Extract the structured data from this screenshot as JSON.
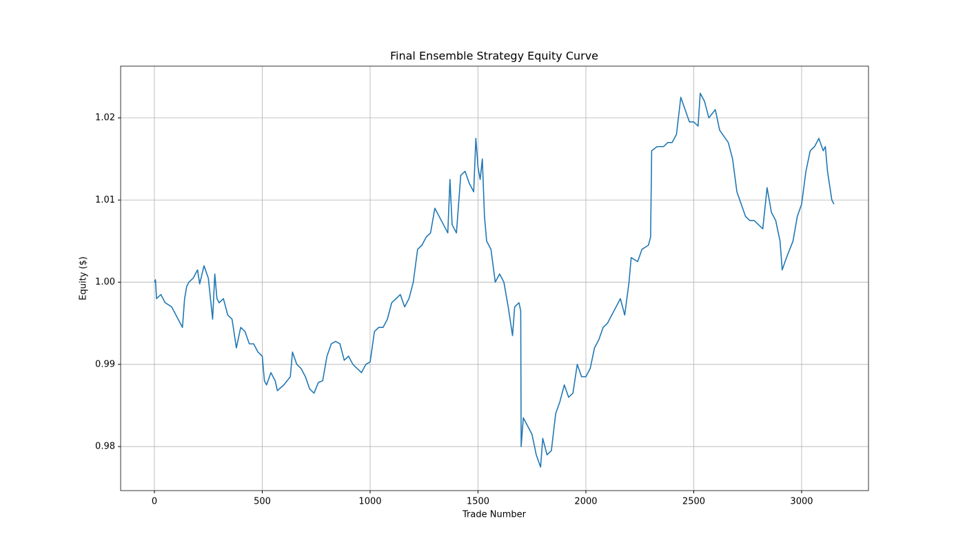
{
  "chart_data": {
    "type": "line",
    "title": "Final Ensemble Strategy Equity Curve",
    "xlabel": "Trade Number",
    "ylabel": "Equity ($)",
    "x": [
      0,
      5,
      10,
      30,
      50,
      80,
      100,
      120,
      130,
      140,
      150,
      160,
      180,
      200,
      210,
      230,
      250,
      260,
      270,
      280,
      290,
      300,
      320,
      340,
      360,
      380,
      400,
      420,
      440,
      460,
      480,
      500,
      510,
      520,
      540,
      560,
      570,
      600,
      630,
      640,
      660,
      680,
      700,
      720,
      740,
      760,
      780,
      800,
      820,
      840,
      860,
      880,
      900,
      920,
      940,
      960,
      980,
      1000,
      1020,
      1040,
      1060,
      1080,
      1100,
      1120,
      1140,
      1160,
      1180,
      1200,
      1220,
      1240,
      1260,
      1280,
      1300,
      1320,
      1340,
      1360,
      1370,
      1380,
      1400,
      1420,
      1440,
      1460,
      1480,
      1490,
      1500,
      1510,
      1520,
      1530,
      1540,
      1560,
      1580,
      1600,
      1620,
      1640,
      1660,
      1670,
      1690,
      1698,
      1700,
      1710,
      1730,
      1750,
      1770,
      1790,
      1800,
      1820,
      1840,
      1860,
      1880,
      1900,
      1920,
      1940,
      1960,
      1980,
      2000,
      2020,
      2040,
      2060,
      2080,
      2100,
      2120,
      2140,
      2160,
      2180,
      2200,
      2210,
      2240,
      2260,
      2290,
      2300,
      2305,
      2330,
      2360,
      2380,
      2400,
      2420,
      2440,
      2460,
      2480,
      2500,
      2520,
      2530,
      2550,
      2570,
      2600,
      2620,
      2660,
      2680,
      2700,
      2720,
      2740,
      2760,
      2780,
      2800,
      2820,
      2840,
      2860,
      2880,
      2900,
      2910,
      2930,
      2960,
      2980,
      3000,
      3020,
      3040,
      3060,
      3080,
      3100,
      3110,
      3120,
      3140,
      3150
    ],
    "series": [
      {
        "name": "Equity",
        "color": "#1f77b4",
        "values": [
          1.0,
          1.0003,
          0.998,
          0.9985,
          0.9975,
          0.997,
          0.996,
          0.995,
          0.9945,
          0.998,
          0.9995,
          1.0,
          1.0005,
          1.0015,
          0.9998,
          1.002,
          1.0005,
          0.998,
          0.9955,
          1.001,
          0.998,
          0.9975,
          0.998,
          0.996,
          0.9955,
          0.992,
          0.9945,
          0.994,
          0.9925,
          0.9925,
          0.9915,
          0.991,
          0.988,
          0.9875,
          0.989,
          0.988,
          0.9868,
          0.9875,
          0.9885,
          0.9915,
          0.99,
          0.9895,
          0.9885,
          0.987,
          0.9865,
          0.9878,
          0.988,
          0.991,
          0.9925,
          0.9928,
          0.9925,
          0.9905,
          0.991,
          0.99,
          0.9895,
          0.989,
          0.99,
          0.9903,
          0.994,
          0.9945,
          0.9945,
          0.9955,
          0.9975,
          0.998,
          0.9985,
          0.997,
          0.998,
          1.0,
          1.004,
          1.0045,
          1.0055,
          1.006,
          1.009,
          1.008,
          1.007,
          1.006,
          1.0125,
          1.007,
          1.006,
          1.013,
          1.0135,
          1.012,
          1.011,
          1.0175,
          1.014,
          1.0125,
          1.015,
          1.008,
          1.005,
          1.004,
          1.0,
          1.001,
          1.0,
          0.997,
          0.9935,
          0.997,
          0.9975,
          0.9965,
          0.98,
          0.9835,
          0.9825,
          0.9815,
          0.979,
          0.9775,
          0.981,
          0.979,
          0.9795,
          0.984,
          0.9855,
          0.9875,
          0.986,
          0.9865,
          0.99,
          0.9885,
          0.9885,
          0.9895,
          0.992,
          0.993,
          0.9945,
          0.995,
          0.996,
          0.997,
          0.998,
          0.996,
          1.0,
          1.003,
          1.0025,
          1.004,
          1.0045,
          1.0055,
          1.016,
          1.0165,
          1.0165,
          1.017,
          1.017,
          1.018,
          1.0225,
          1.021,
          1.0195,
          1.0195,
          1.019,
          1.023,
          1.022,
          1.02,
          1.021,
          1.0185,
          1.017,
          1.015,
          1.011,
          1.0095,
          1.008,
          1.0075,
          1.0075,
          1.007,
          1.0065,
          1.0115,
          1.0085,
          1.0075,
          1.005,
          1.0015,
          1.003,
          1.005,
          1.008,
          1.0095,
          1.0135,
          1.016,
          1.0165,
          1.0175,
          1.016,
          1.0165,
          1.0135,
          1.01,
          1.0095
        ]
      }
    ],
    "xlim": [
      -156.5,
      3310
    ],
    "ylim": [
      0.97464,
      1.02629
    ],
    "xticks": [
      0,
      500,
      1000,
      1500,
      2000,
      2500,
      3000
    ],
    "yticks": [
      0.98,
      0.99,
      {
        "value": 1,
        "label": "1.00"
      },
      1.01,
      1.02
    ],
    "grid": true
  }
}
